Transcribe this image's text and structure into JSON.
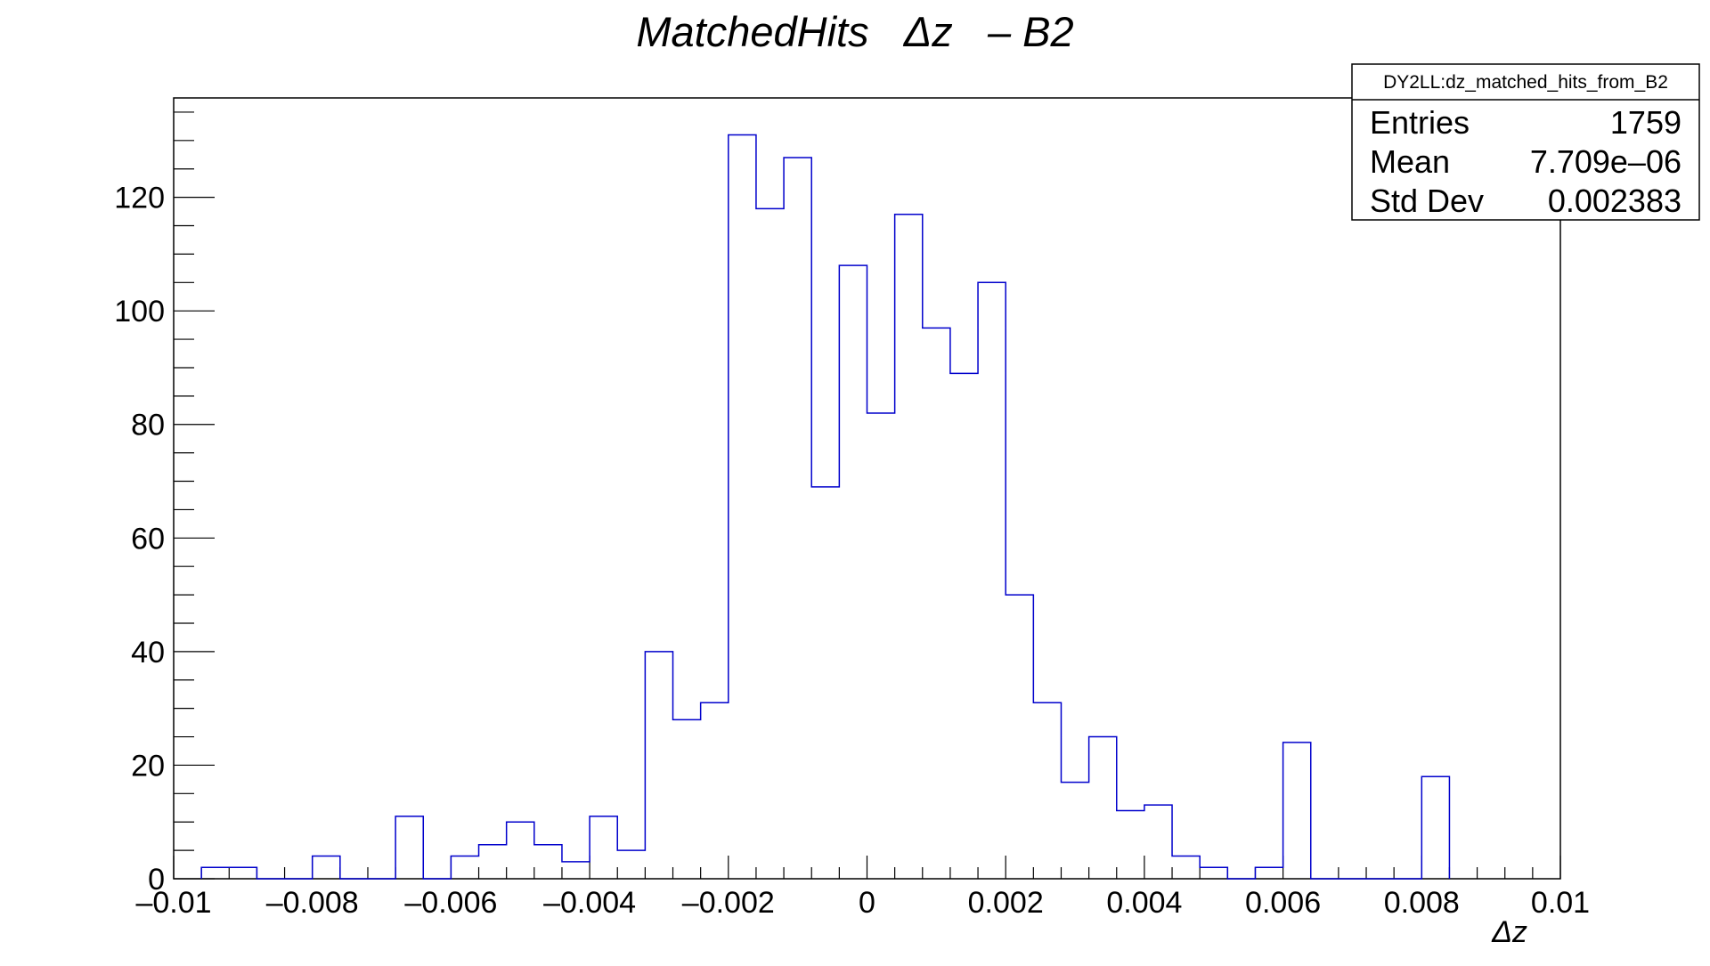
{
  "chart_data": {
    "type": "bar",
    "title": "MatchedHits   Δz   – B2",
    "xlabel": "Δz",
    "ylabel": "",
    "xlim": [
      -0.01,
      0.01
    ],
    "ylim": [
      0,
      137.5
    ],
    "grid": false,
    "x_ticks": [
      -0.01,
      -0.008,
      -0.006,
      -0.004,
      -0.002,
      0,
      0.002,
      0.004,
      0.006,
      0.008,
      0.01
    ],
    "x_tick_labels": [
      "–0.01",
      "–0.008",
      "–0.006",
      "–0.004",
      "–0.002",
      "0",
      "0.002",
      "0.004",
      "0.006",
      "0.008",
      "0.01"
    ],
    "y_ticks": [
      0,
      20,
      40,
      60,
      80,
      100,
      120
    ],
    "y_tick_labels": [
      "0",
      "20",
      "40",
      "60",
      "80",
      "100",
      "120"
    ],
    "bin_edges": [
      -0.0096,
      -0.0092,
      -0.0088,
      -0.0084,
      -0.008,
      -0.0076,
      -0.0072,
      -0.0068,
      -0.0064,
      -0.006,
      -0.0056,
      -0.0052,
      -0.0048,
      -0.0044,
      -0.004,
      -0.0036,
      -0.0032,
      -0.0028,
      -0.0024,
      -0.002,
      -0.0016,
      -0.0012,
      -0.0008,
      -0.0004,
      0.0,
      0.0004,
      0.0008,
      0.0012,
      0.0016,
      0.002,
      0.0024,
      0.0028,
      0.0032,
      0.0036,
      0.004,
      0.0044,
      0.0048,
      0.0052,
      0.0056,
      0.006,
      0.0064,
      0.0068,
      0.0072,
      0.0076,
      0.008,
      0.0084
    ],
    "values": [
      2,
      2,
      0,
      0,
      4,
      0,
      0,
      11,
      0,
      4,
      6,
      10,
      6,
      3,
      11,
      5,
      40,
      28,
      31,
      131,
      118,
      127,
      69,
      108,
      82,
      117,
      97,
      89,
      105,
      50,
      31,
      17,
      25,
      12,
      13,
      4,
      2,
      0,
      2,
      24,
      0,
      0,
      0,
      0,
      18
    ],
    "line_color": "#0000cc",
    "legend_position": "top-right",
    "stats_box": {
      "name": "DY2LL:dz_matched_hits_from_B2",
      "rows": [
        {
          "label": "Entries",
          "value": "1759"
        },
        {
          "label": "Mean",
          "value": "7.709e–06"
        },
        {
          "label": "Std Dev",
          "value": "0.002383"
        }
      ]
    }
  }
}
